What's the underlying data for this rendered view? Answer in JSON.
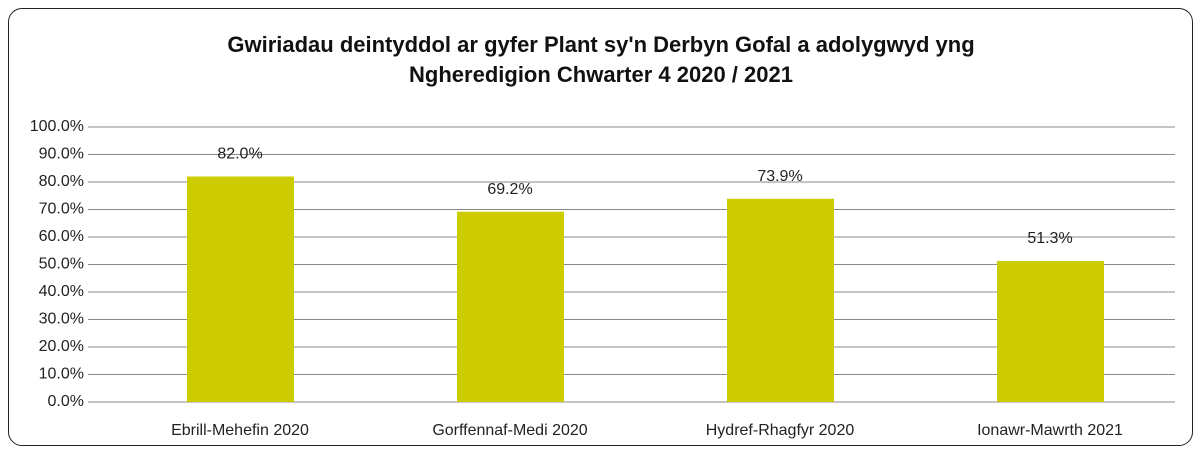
{
  "chart_data": {
    "type": "bar",
    "title": "Gwiriadau deintyddol ar gyfer Plant sy'n Derbyn Gofal a adolygwyd yng Ngheredigion Chwarter 4 2020  / 2021",
    "categories": [
      "Ebrill-Mehefin 2020",
      "Gorffennaf-Medi 2020",
      "Hydref-Rhagfyr 2020",
      "Ionawr-Mawrth 2021"
    ],
    "values": [
      82.0,
      69.2,
      73.9,
      51.3
    ],
    "value_labels": [
      "82.0%",
      "69.2%",
      "73.9%",
      "51.3%"
    ],
    "color": "#cccc00",
    "ylim": [
      0,
      100
    ],
    "yticks": [
      {
        "value": 0,
        "label": "0.0%"
      },
      {
        "value": 10,
        "label": "10.0%"
      },
      {
        "value": 20,
        "label": "20.0%"
      },
      {
        "value": 30,
        "label": "30.0%"
      },
      {
        "value": 40,
        "label": "40.0%"
      },
      {
        "value": 50,
        "label": "50.0%"
      },
      {
        "value": 60,
        "label": "60.0%"
      },
      {
        "value": 70,
        "label": "70.0%"
      },
      {
        "value": 80,
        "label": "80.0%"
      },
      {
        "value": 90,
        "label": "90.0%"
      },
      {
        "value": 100,
        "label": "100.0%"
      }
    ],
    "grid": true
  }
}
